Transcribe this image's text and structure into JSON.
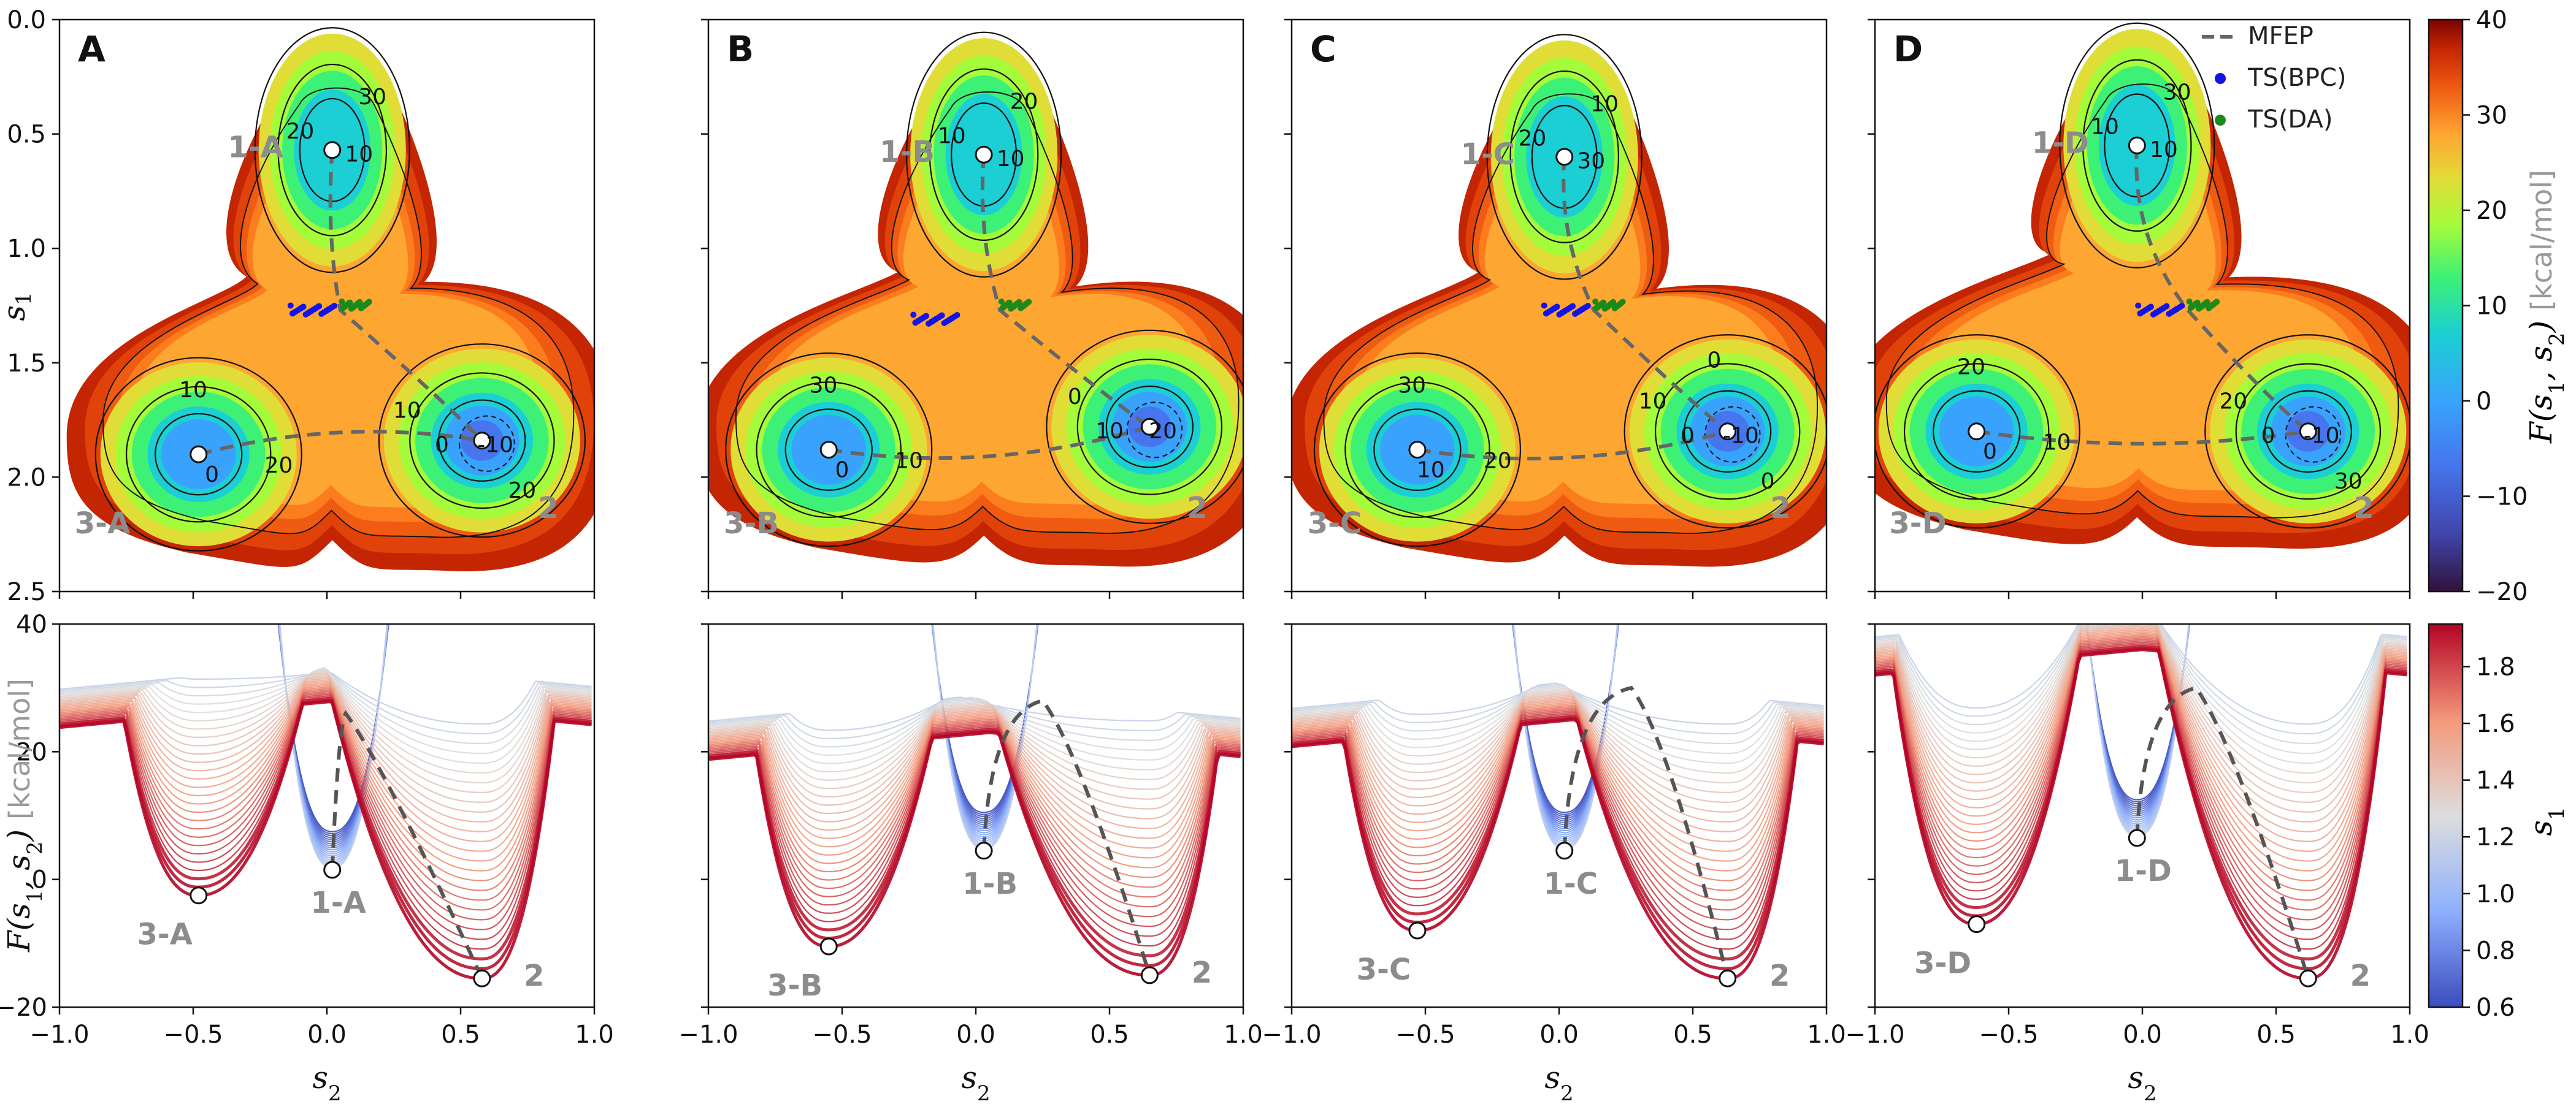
{
  "chart_data": [
    {
      "type": "heatmap",
      "panel_label": "A",
      "xlabel": "s_2",
      "ylabel": "s_1",
      "xlim": [
        -1.0,
        1.0
      ],
      "ylim": [
        2.5,
        0.0
      ],
      "x_ticks": [
        "−1.0",
        "−0.5",
        "0.0",
        "0.5",
        "1.0"
      ],
      "y_ticks": [
        "0.0",
        "0.5",
        "1.0",
        "1.5",
        "2.0",
        "2.5"
      ],
      "contour_levels": [
        -10,
        0,
        10,
        20,
        30
      ],
      "minima": [
        {
          "label": "1-A",
          "s2": 0.02,
          "s1": 0.57
        },
        {
          "label": "2",
          "s2": 0.58,
          "s1": 1.84
        },
        {
          "label": "3-A",
          "s2": -0.48,
          "s1": 1.9
        }
      ],
      "contour_labels": [
        "30",
        "20",
        "10",
        "10",
        "0",
        "20",
        "10",
        "0",
        "-10",
        "20"
      ],
      "colorbar": {
        "label": "F(s_1, s_2)",
        "unit": "[kcal/mol]",
        "range": [
          -20,
          40
        ],
        "ticks": [
          "40",
          "30",
          "20",
          "10",
          "0",
          "−10",
          "−20"
        ]
      }
    },
    {
      "type": "heatmap",
      "panel_label": "B",
      "xlabel": "s_2",
      "ylabel": "s_1",
      "xlim": [
        -1.0,
        1.0
      ],
      "ylim": [
        2.5,
        0.0
      ],
      "minima": [
        {
          "label": "1-B",
          "s2": 0.03,
          "s1": 0.59
        },
        {
          "label": "2",
          "s2": 0.65,
          "s1": 1.78
        },
        {
          "label": "3-B",
          "s2": -0.55,
          "s1": 1.88
        }
      ],
      "contour_labels": [
        "20",
        "10",
        "10",
        "30",
        "0",
        "10",
        "0",
        "10",
        "20"
      ]
    },
    {
      "type": "heatmap",
      "panel_label": "C",
      "xlabel": "s_2",
      "ylabel": "s_1",
      "xlim": [
        -1.0,
        1.0
      ],
      "ylim": [
        2.5,
        0.0
      ],
      "minima": [
        {
          "label": "1-C",
          "s2": 0.02,
          "s1": 0.6
        },
        {
          "label": "2",
          "s2": 0.63,
          "s1": 1.8
        },
        {
          "label": "3-C",
          "s2": -0.53,
          "s1": 1.88
        }
      ],
      "contour_labels": [
        "10",
        "20",
        "30",
        "30",
        "10",
        "20",
        "10",
        "0",
        "-10",
        "0",
        "0"
      ]
    },
    {
      "type": "heatmap",
      "panel_label": "D",
      "xlabel": "s_2",
      "ylabel": "s_1",
      "xlim": [
        -1.0,
        1.0
      ],
      "ylim": [
        2.5,
        0.0
      ],
      "minima": [
        {
          "label": "1-D",
          "s2": -0.02,
          "s1": 0.55
        },
        {
          "label": "2",
          "s2": 0.62,
          "s1": 1.8
        },
        {
          "label": "3-D",
          "s2": -0.62,
          "s1": 1.8
        }
      ],
      "contour_labels": [
        "30",
        "10",
        "10",
        "20",
        "0",
        "10",
        "20",
        "0",
        "-10",
        "30"
      ],
      "legend": [
        {
          "label": "MFEP",
          "style": "dashed",
          "color": "#666666"
        },
        {
          "label": "TS(BPC)",
          "style": "point",
          "color": "#1414e6"
        },
        {
          "label": "TS(DA)",
          "style": "point",
          "color": "#1a8a1a"
        }
      ]
    },
    {
      "type": "line",
      "xlabel": "s_2",
      "ylabel": "F(s_1, s_2)",
      "yunit": "[kcal/mol]",
      "xlim": [
        -1.0,
        1.0
      ],
      "ylim": [
        -20,
        40
      ],
      "x_ticks": [
        "−1.0",
        "−0.5",
        "0.0",
        "0.5",
        "1.0"
      ],
      "y_ticks": [
        "40",
        "20",
        "0",
        "−20"
      ],
      "colorbar": {
        "label": "s_1",
        "range": [
          0.6,
          1.95
        ],
        "ticks": [
          "1.8",
          "1.6",
          "1.4",
          "1.2",
          "1.0",
          "0.8",
          "0.6"
        ]
      },
      "panels": [
        {
          "id": "A",
          "minima": [
            {
              "label": "3-A",
              "s2": -0.48,
              "F": -2.5
            },
            {
              "label": "1-A",
              "s2": 0.02,
              "F": 1.5
            },
            {
              "label": "2",
              "s2": 0.58,
              "F": -15.5
            }
          ],
          "ts_left": 24,
          "ts_right": 26,
          "mfep_peak_s2": 0.07
        },
        {
          "id": "B",
          "minima": [
            {
              "label": "3-B",
              "s2": -0.55,
              "F": -10.5
            },
            {
              "label": "1-B",
              "s2": 0.03,
              "F": 4.5
            },
            {
              "label": "2",
              "s2": 0.65,
              "F": -15.0
            }
          ],
          "ts_left": 19,
          "ts_right": 28,
          "mfep_peak_s2": 0.25
        },
        {
          "id": "C",
          "minima": [
            {
              "label": "3-C",
              "s2": -0.53,
              "F": -8.0
            },
            {
              "label": "1-C",
              "s2": 0.02,
              "F": 4.5
            },
            {
              "label": "2",
              "s2": 0.63,
              "F": -15.5
            }
          ],
          "ts_left": 21,
          "ts_right": 30,
          "mfep_peak_s2": 0.27
        },
        {
          "id": "D",
          "minima": [
            {
              "label": "3-D",
              "s2": -0.62,
              "F": -7.0
            },
            {
              "label": "1-D",
              "s2": -0.02,
              "F": 6.5
            },
            {
              "label": "2",
              "s2": 0.62,
              "F": -15.5
            }
          ],
          "ts_left": 32,
          "ts_right": 30,
          "mfep_peak_s2": 0.2
        }
      ]
    }
  ]
}
